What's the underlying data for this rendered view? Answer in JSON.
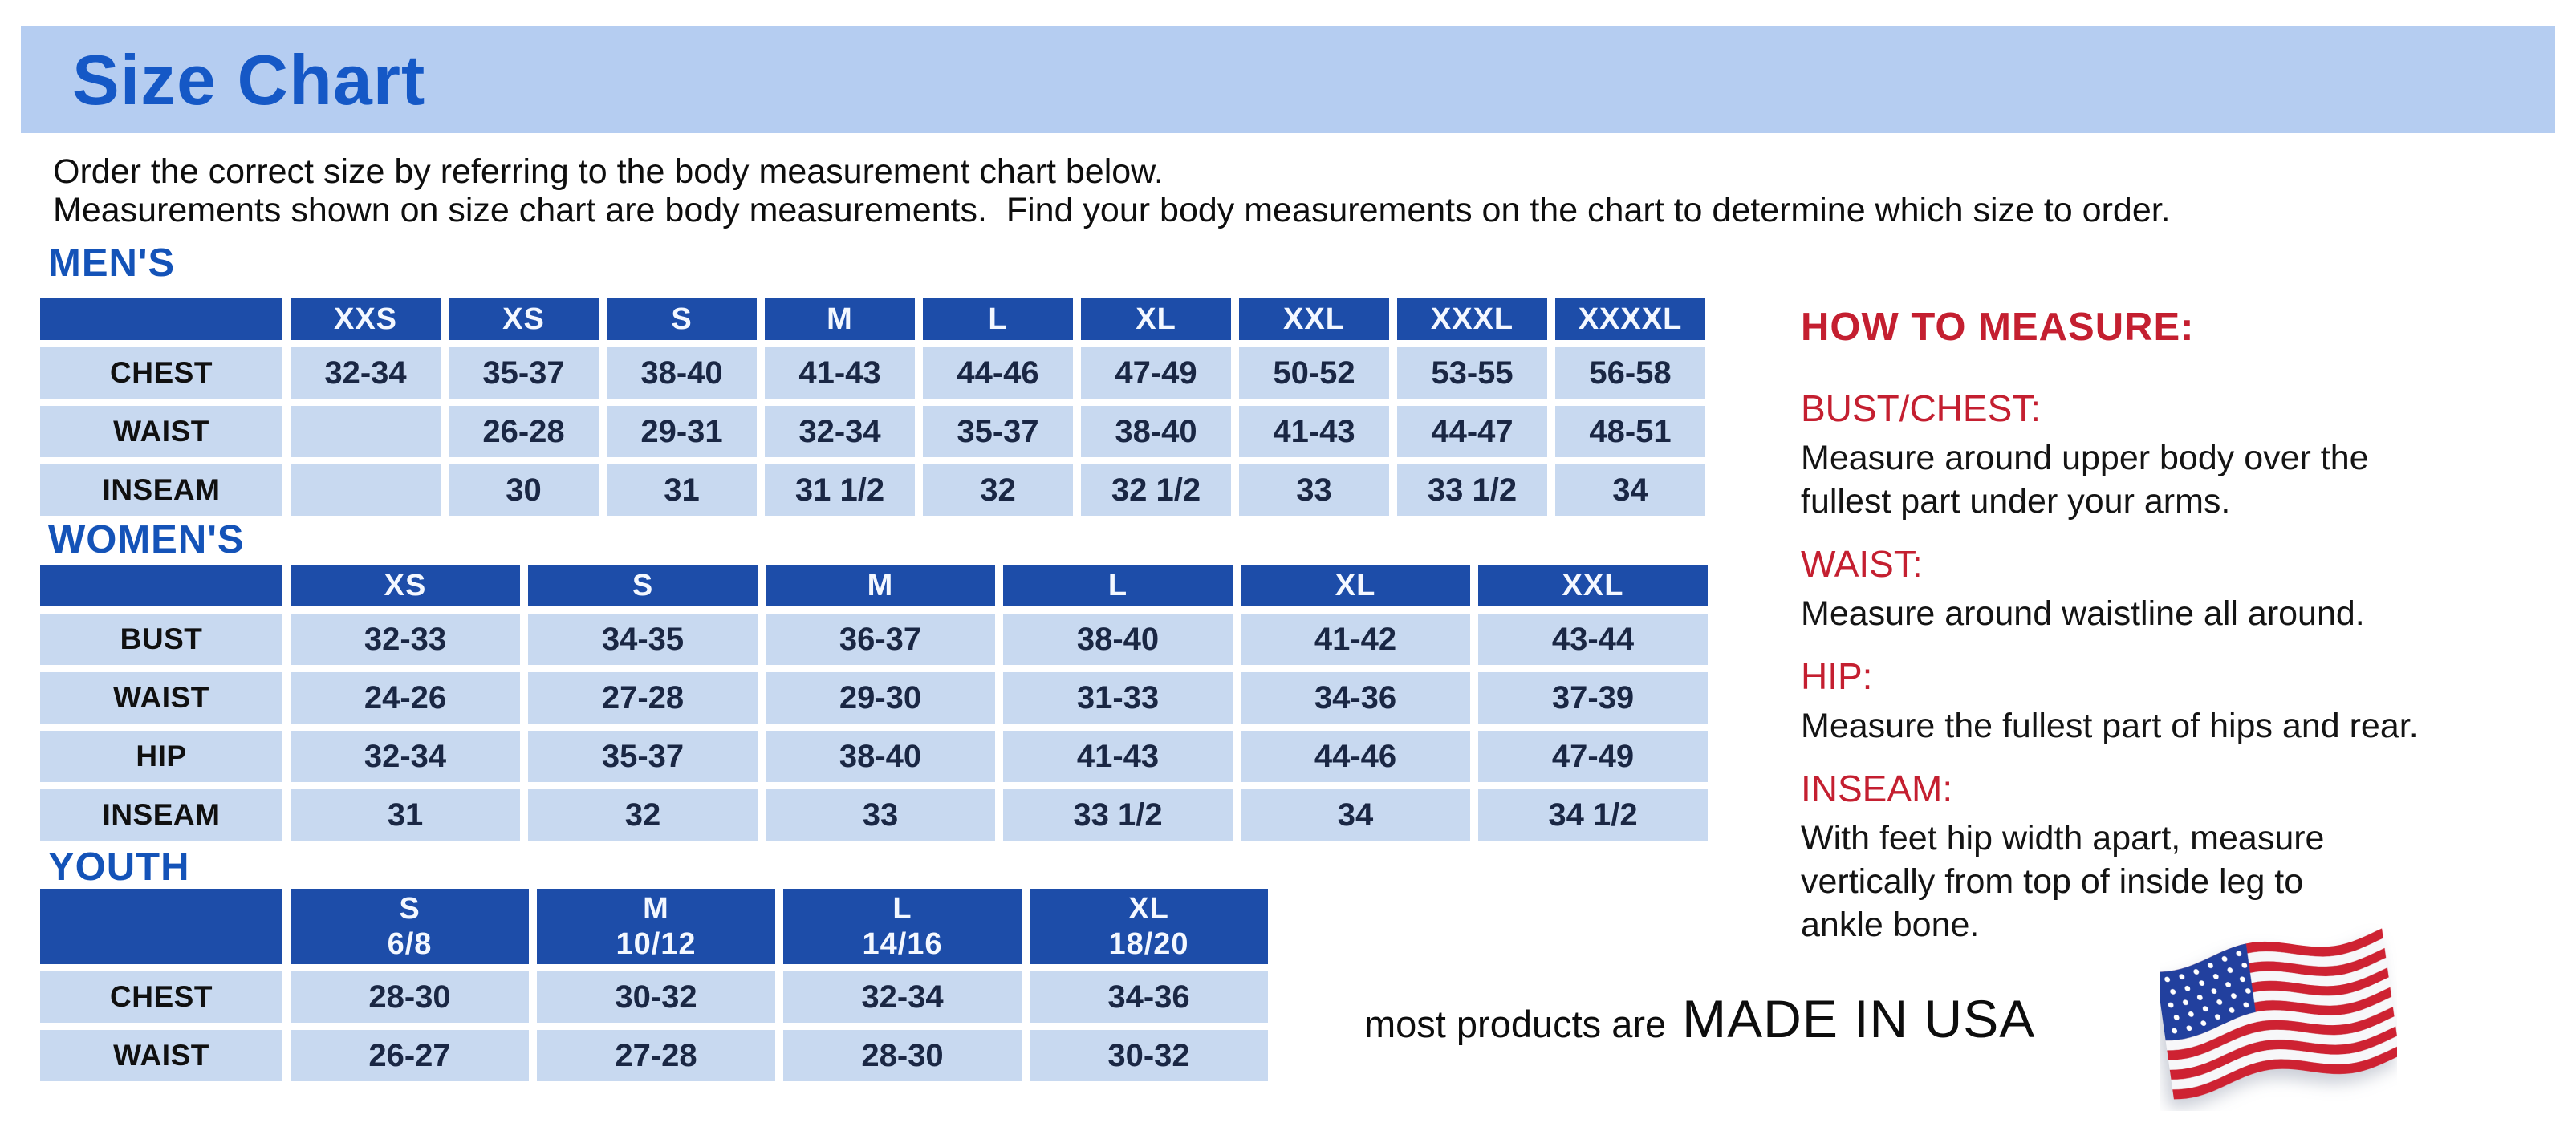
{
  "page": {
    "title": "Size Chart",
    "intro": "Order the correct size by referring to the body measurement chart below.\nMeasurements shown on size chart are body measurements.  Find your body measurements on the chart to determine which size to order."
  },
  "colors": {
    "band_background": "#b5cdf1",
    "title_blue": "#1558c6",
    "section_blue": "#1453b8",
    "table_header_blue": "#1d4da9",
    "table_cell_blue": "#c8d9f0",
    "heading_red": "#c41f30",
    "cell_text_navy": "#1a2744"
  },
  "tables": [
    {
      "id": "mens",
      "section_title": "MEN'S",
      "columns": [
        {
          "label": "XXS"
        },
        {
          "label": "XS"
        },
        {
          "label": "S"
        },
        {
          "label": "M"
        },
        {
          "label": "L"
        },
        {
          "label": "XL"
        },
        {
          "label": "XXL"
        },
        {
          "label": "XXXL"
        },
        {
          "label": "XXXXL"
        }
      ],
      "rows": [
        {
          "label": "CHEST",
          "values": [
            "32-34",
            "35-37",
            "38-40",
            "41-43",
            "44-46",
            "47-49",
            "50-52",
            "53-55",
            "56-58"
          ]
        },
        {
          "label": "WAIST",
          "values": [
            "",
            "26-28",
            "29-31",
            "32-34",
            "35-37",
            "38-40",
            "41-43",
            "44-47",
            "48-51"
          ]
        },
        {
          "label": "INSEAM",
          "values": [
            "",
            "30",
            "31",
            "31 1/2",
            "32",
            "32 1/2",
            "33",
            "33 1/2",
            "34"
          ]
        }
      ]
    },
    {
      "id": "womens",
      "section_title": "WOMEN'S",
      "columns": [
        {
          "label": "XS"
        },
        {
          "label": "S"
        },
        {
          "label": "M"
        },
        {
          "label": "L"
        },
        {
          "label": "XL"
        },
        {
          "label": "XXL"
        }
      ],
      "rows": [
        {
          "label": "BUST",
          "values": [
            "32-33",
            "34-35",
            "36-37",
            "38-40",
            "41-42",
            "43-44"
          ]
        },
        {
          "label": "WAIST",
          "values": [
            "24-26",
            "27-28",
            "29-30",
            "31-33",
            "34-36",
            "37-39"
          ]
        },
        {
          "label": "HIP",
          "values": [
            "32-34",
            "35-37",
            "38-40",
            "41-43",
            "44-46",
            "47-49"
          ]
        },
        {
          "label": "INSEAM",
          "values": [
            "31",
            "32",
            "33",
            "33 1/2",
            "34",
            "34 1/2"
          ]
        }
      ]
    },
    {
      "id": "youth",
      "section_title": "YOUTH",
      "columns": [
        {
          "label": "S",
          "sublabel": "6/8"
        },
        {
          "label": "M",
          "sublabel": "10/12"
        },
        {
          "label": "L",
          "sublabel": "14/16"
        },
        {
          "label": "XL",
          "sublabel": "18/20"
        }
      ],
      "rows": [
        {
          "label": "CHEST",
          "values": [
            "28-30",
            "30-32",
            "32-34",
            "34-36"
          ]
        },
        {
          "label": "WAIST",
          "values": [
            "26-27",
            "27-28",
            "28-30",
            "30-32"
          ]
        }
      ]
    }
  ],
  "how_to_measure": {
    "title": "HOW TO MEASURE:",
    "items": [
      {
        "label": "BUST/CHEST:",
        "text": "Measure around upper body over the\nfullest part under your arms."
      },
      {
        "label": "WAIST:",
        "text": "Measure around waistline all around."
      },
      {
        "label": "HIP:",
        "text": "Measure the fullest part of hips and rear."
      },
      {
        "label": "INSEAM:",
        "text": "With feet hip width apart, measure\nvertically from top of inside leg to\nankle bone."
      }
    ]
  },
  "footer": {
    "made_in_prefix": "most products are",
    "made_in": "MADE IN USA",
    "flag_icon": "us-flag-icon"
  }
}
